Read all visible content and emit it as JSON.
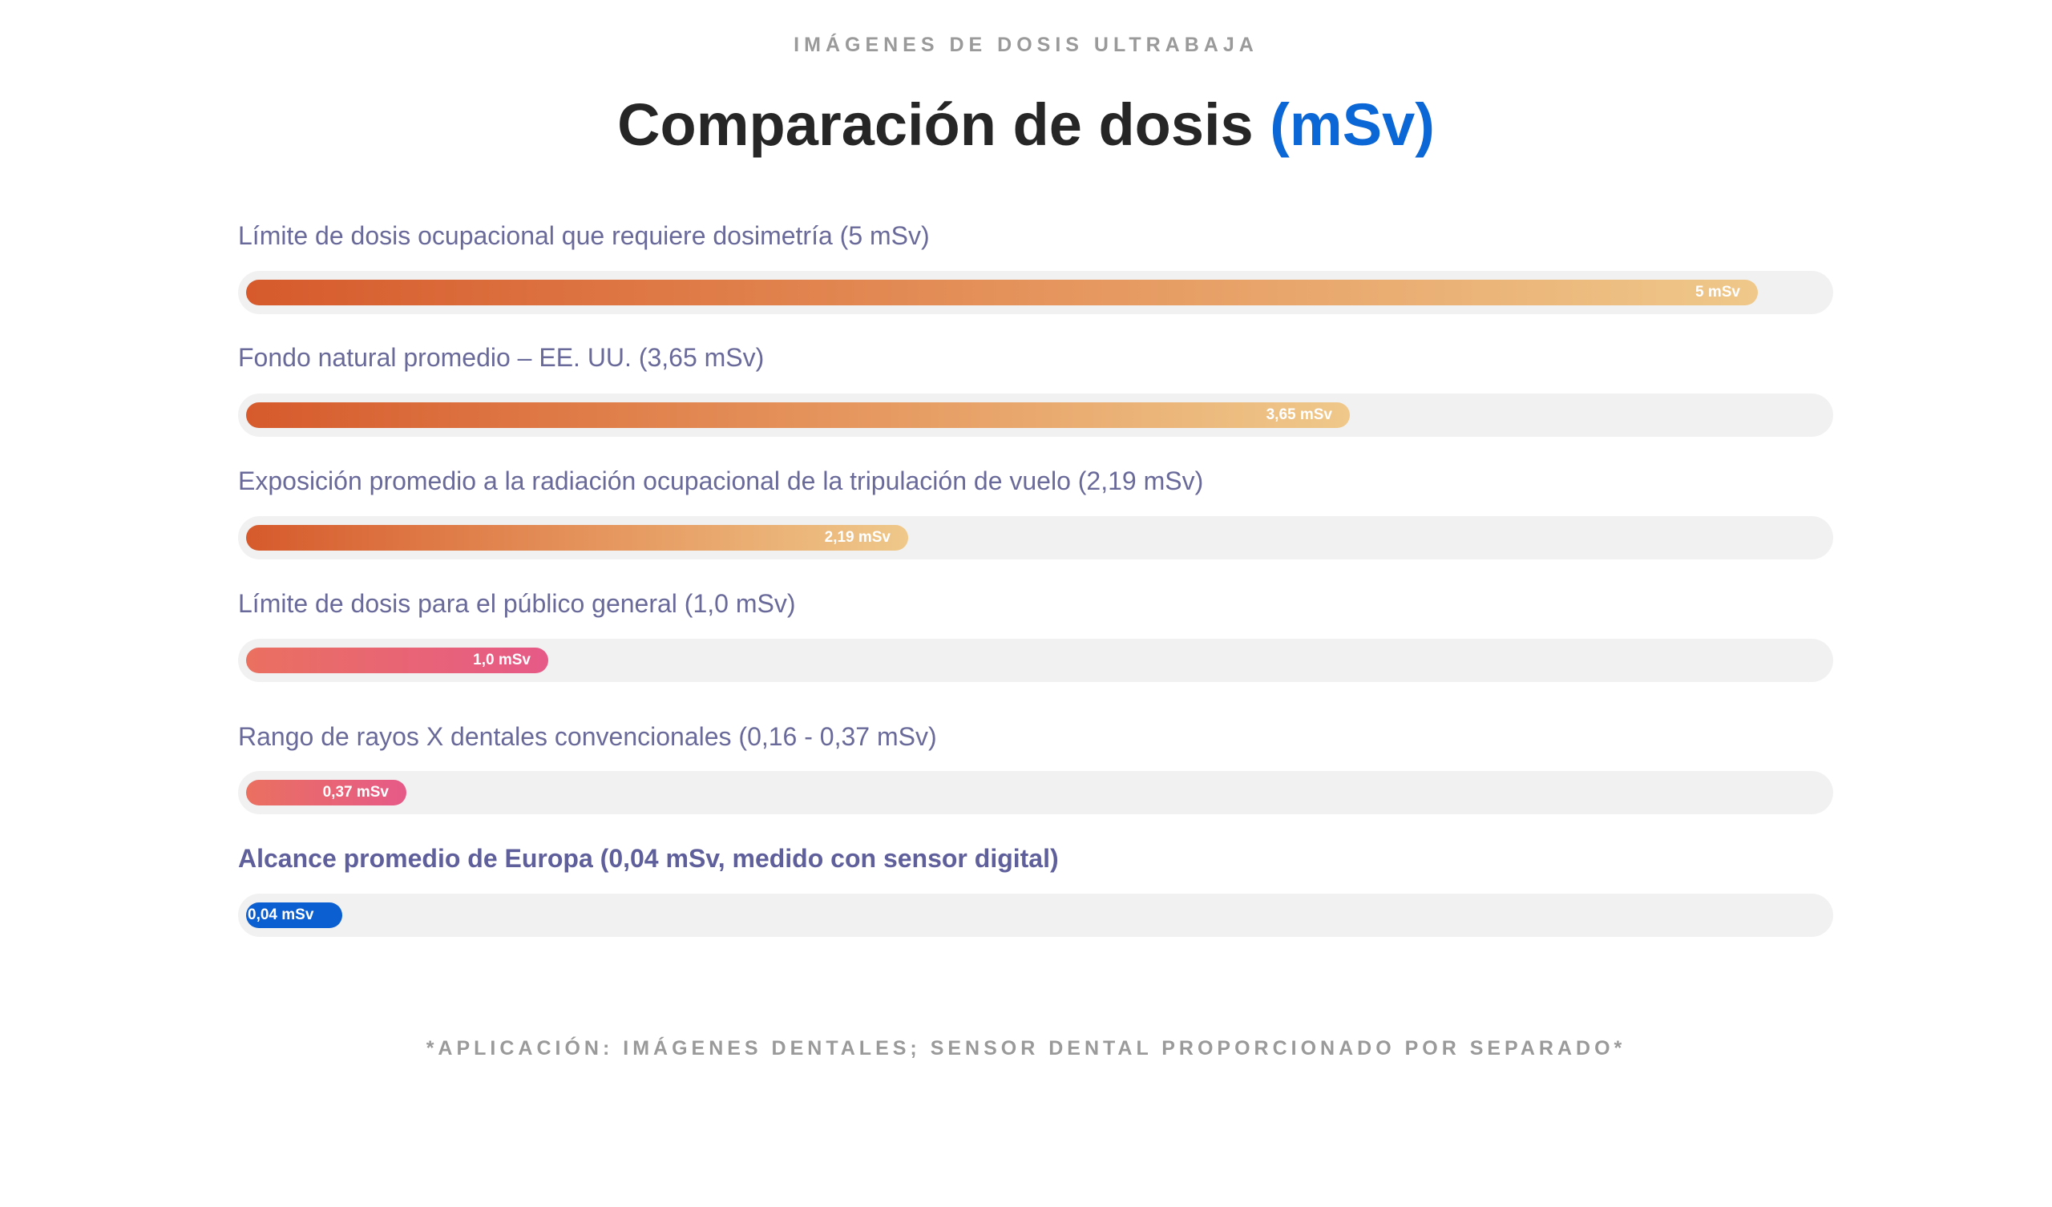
{
  "header": {
    "eyebrow": "IMÁGENES DE DOSIS ULTRABAJA",
    "title_main": "Comparación de dosis",
    "title_accent": "(mSv)"
  },
  "chart_data": {
    "type": "bar",
    "orientation": "horizontal",
    "unit": "mSv",
    "title": "Comparación de dosis (mSv)",
    "xlim": [
      0,
      5.2
    ],
    "categories": [
      "Límite de dosis ocupacional que requiere dosimetría (5 mSv)",
      "Fondo natural promedio – EE. UU. (3,65 mSv)",
      "Exposición promedio a la radiación ocupacional de la tripulación de vuelo (2,19 mSv)",
      "Límite de dosis para el público general (1,0 mSv)",
      "Rango de rayos X dentales convencionales (0,16 - 0,37 mSv)",
      "Alcance promedio de Europa (0,04 mSv, medido con sensor digital)"
    ],
    "values": [
      5,
      3.65,
      2.19,
      1.0,
      0.37,
      0.04
    ],
    "value_labels": [
      "5 mSv",
      "3,65 mSv",
      "2,19 mSv",
      "1,0 mSv",
      "0,37 mSv",
      "0,04 mSv"
    ],
    "styles": [
      "warm",
      "warm",
      "warm",
      "pink",
      "pink",
      "blue"
    ],
    "highlight": [
      false,
      false,
      false,
      false,
      false,
      true
    ]
  },
  "footer": {
    "note": "*APLICACIÓN: IMÁGENES DENTALES; SENSOR DENTAL PROPORCIONADO POR SEPARADO*"
  }
}
